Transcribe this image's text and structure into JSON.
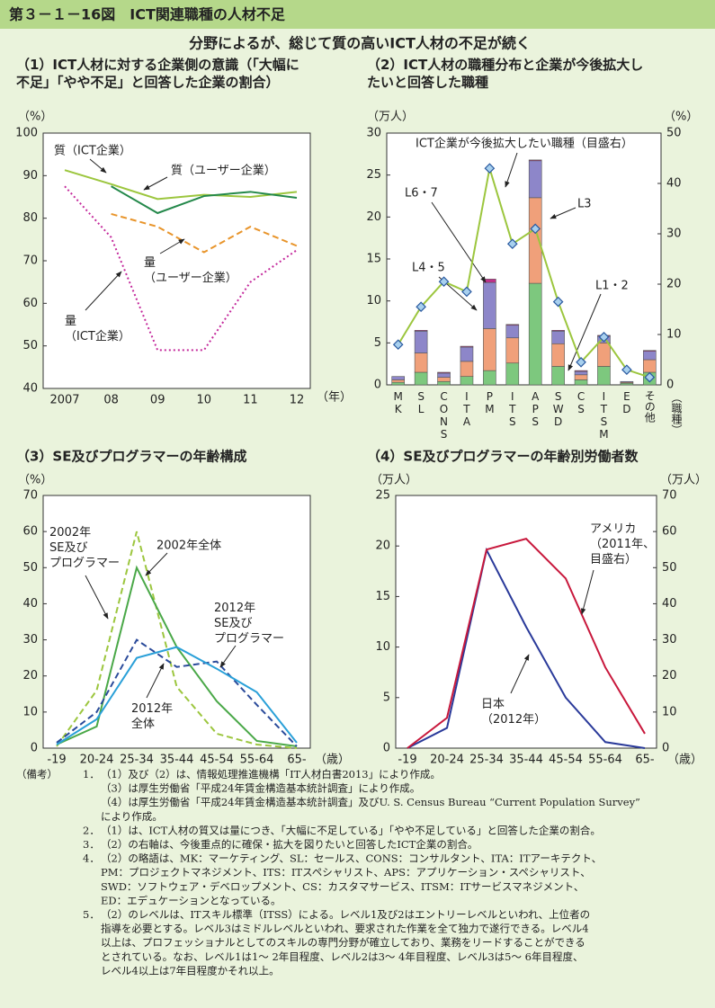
{
  "header": {
    "title": "第３－１－16図　ICT関連職種の人材不足",
    "subtitle": "分野によるが、総じて質の高いICT人材の不足が続く"
  },
  "chart_data": [
    {
      "type": "line",
      "title": "（1）ICT人材に対する企業側の意識（「大幅に\n不足」「やや不足」と回答した企業の割合）",
      "ylabel": "（%）",
      "xlabel": "（年）",
      "categories": [
        "2007",
        "08",
        "09",
        "10",
        "11",
        "12"
      ],
      "ylim": [
        40,
        100
      ],
      "yticks": [
        40,
        50,
        60,
        70,
        80,
        90,
        100
      ],
      "series": [
        {
          "name": "質（ICT企業）",
          "color": "#9cc63e",
          "style": "solid",
          "values": [
            91.3,
            88,
            84.5,
            85.5,
            85,
            86.2
          ]
        },
        {
          "name": "質（ユーザー企業）",
          "color": "#23884a",
          "style": "solid",
          "values": [
            null,
            87.5,
            81.2,
            85.2,
            86.2,
            84.8
          ]
        },
        {
          "name": "量\n（ユーザー企業）",
          "color": "#e8942a",
          "style": "dashed",
          "values": [
            null,
            81,
            78,
            72,
            78,
            73.5
          ]
        },
        {
          "name": "量\n（ICT企業）",
          "color": "#c42a9c",
          "style": "dotted",
          "values": [
            87.5,
            75.5,
            49,
            49,
            65,
            72.5
          ]
        }
      ]
    },
    {
      "type": "bar",
      "stacked": true,
      "title": "（2）ICT人材の職種分布と企業が今後拡大し\nたいと回答した職種",
      "ylabel": "（万人）",
      "y2label": "（%）",
      "xlabel": "（職種）",
      "categories": [
        "MK",
        "SL",
        "CONS",
        "ITA",
        "PM",
        "ITS",
        "APS",
        "SWD",
        "CS",
        "ITSM",
        "ED",
        "その他"
      ],
      "ylim": [
        0,
        30
      ],
      "yticks": [
        0,
        5,
        10,
        15,
        20,
        25,
        30
      ],
      "y2lim": [
        0,
        50
      ],
      "y2ticks": [
        0,
        10,
        20,
        30,
        40,
        50
      ],
      "series": [
        {
          "name": "L1・2",
          "color": "#7dc87e",
          "values": [
            0.3,
            1.5,
            0.4,
            1.0,
            1.7,
            2.6,
            12.1,
            2.2,
            0.6,
            2.2,
            0.2,
            1.5
          ]
        },
        {
          "name": "L3",
          "color": "#f0a07a",
          "values": [
            0.3,
            2.3,
            0.5,
            1.8,
            5.0,
            3.0,
            10.2,
            2.7,
            0.6,
            2.8,
            0.1,
            1.5
          ]
        },
        {
          "name": "L4・5",
          "color": "#8d86c9",
          "values": [
            0.4,
            2.6,
            0.5,
            1.7,
            5.5,
            1.5,
            4.4,
            1.5,
            0.4,
            0.8,
            0.1,
            1.0
          ]
        },
        {
          "name": "L6・7",
          "color": "#c0308a",
          "values": [
            0.0,
            0.1,
            0.1,
            0.1,
            0.4,
            0.1,
            0.1,
            0.1,
            0.1,
            0.1,
            0.0,
            0.1
          ]
        },
        {
          "name": "ICT企業が今後拡大したい職種（目盛右）",
          "type": "line",
          "axis": "y2",
          "marker": "diamond",
          "color": "#9cc63e",
          "style": "solid",
          "values": [
            8,
            15.5,
            20.5,
            18.5,
            43,
            28,
            31,
            16.5,
            4.5,
            9.5,
            3,
            1.5
          ]
        }
      ]
    },
    {
      "type": "line",
      "title": "（3）SE及びプログラマーの年齢構成",
      "ylabel": "（%）",
      "xlabel": "（歳）",
      "categories": [
        "-19",
        "20-24",
        "25-34",
        "35-44",
        "45-54",
        "55-64",
        "65-"
      ],
      "ylim": [
        0,
        70
      ],
      "yticks": [
        0,
        10,
        20,
        30,
        40,
        50,
        60,
        70
      ],
      "series": [
        {
          "name": "2002年\nSE及び\nプログラマー",
          "color": "#9cc63e",
          "style": "dashed",
          "values": [
            0.5,
            16,
            60,
            17,
            4,
            1,
            0
          ]
        },
        {
          "name": "2002年全体",
          "color": "#4aa848",
          "style": "solid",
          "values": [
            1,
            6,
            50,
            28,
            13,
            2,
            0.5
          ]
        },
        {
          "name": "2012年\nSE及び\nプログラマー",
          "color": "#2a4a9a",
          "style": "dashed",
          "values": [
            1.5,
            10,
            30,
            22.5,
            24,
            12,
            0.5
          ]
        },
        {
          "name": "2012年\n全体",
          "color": "#2aa0d8",
          "style": "solid",
          "values": [
            1,
            8,
            25,
            28,
            22,
            15.5,
            1.5
          ]
        }
      ]
    },
    {
      "type": "line",
      "title": "（4）SE及びプログラマーの年齢別労働者数",
      "ylabel": "（万人）",
      "y2label": "（万人）",
      "xlabel": "（歳）",
      "categories": [
        "-19",
        "20-24",
        "25-34",
        "35-44",
        "45-54",
        "55-64",
        "65-"
      ],
      "ylim": [
        0,
        25
      ],
      "yticks": [
        0,
        5,
        10,
        15,
        20,
        25
      ],
      "y2lim": [
        0,
        70
      ],
      "y2ticks": [
        0,
        10,
        20,
        30,
        40,
        50,
        60,
        70
      ],
      "series": [
        {
          "name": "日本\n（2012年）",
          "color": "#2a3a9a",
          "style": "solid",
          "values": [
            0,
            2,
            19.6,
            12,
            5,
            0.6,
            0
          ]
        },
        {
          "name": "アメリカ\n（2011年、\n目盛右）",
          "color": "#c8183c",
          "style": "solid",
          "axis": "y2",
          "values": [
            0,
            8.4,
            55,
            58,
            47,
            22.4,
            4
          ]
        }
      ]
    }
  ],
  "notes": {
    "label": "（備考）",
    "items": [
      {
        "number": "1．",
        "lines": [
          "（1）及び（2）は、情報処理推進機構「IT人材白書2013」により作成。",
          "（3）は厚生労働省「平成24年賃金構造基本統計調査」により作成。",
          "（4）は厚生労働省「平成24年賃金構造基本統計調査」及びU. S. Census Bureau “Current Population Survey”",
          "により作成。"
        ]
      },
      {
        "number": "2．",
        "lines": [
          "（1）は、ICT人材の質又は量につき、「大幅に不足している」「やや不足している」と回答した企業の割合。"
        ]
      },
      {
        "number": "3．",
        "lines": [
          "（2）の右軸は、今後重点的に確保・拡大を図りたいと回答したICT企業の割合。"
        ]
      },
      {
        "number": "4．",
        "lines": [
          "（2）の略語は、MK：マーケティング、SL：セールス、CONS：コンサルタント、ITA：ITアーキテクト、",
          "PM：プロジェクトマネジメント、ITS：ITスペシャリスト、APS：アプリケーション・スペシャリスト、",
          "SWD：ソフトウェア・デベロップメント、CS：カスタマサービス、ITSM：ITサービスマネジメント、",
          "ED：エデュケーションとなっている。"
        ]
      },
      {
        "number": "5．",
        "lines": [
          "（2）のレベルは、ITスキル標準（ITSS）による。レベル1及び2はエントリーレベルといわれ、上位者の",
          "指導を必要とする。レベル3はミドルレベルといわれ、要求された作業を全て独力で遂行できる。レベル4",
          "以上は、プロフェッショナルとしてのスキルの専門分野が確立しており、業務をリードすることができる",
          "とされている。なお、レベル1は1～ 2年目程度、レベル2は3～ 4年目程度、レベル3は5～ 6年目程度、",
          "レベル4以上は7年目程度かそれ以上。"
        ]
      }
    ]
  }
}
